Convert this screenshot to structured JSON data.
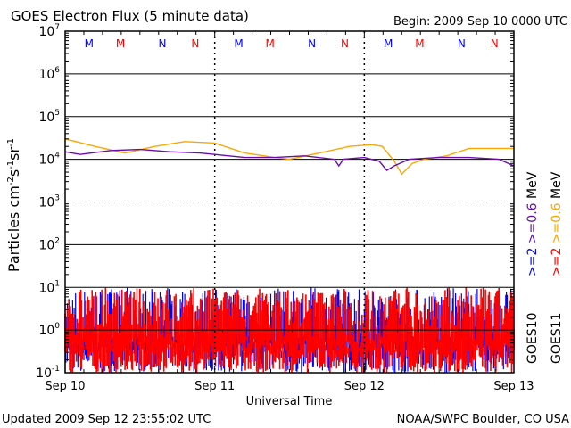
{
  "chart_data": {
    "type": "line",
    "title": "GOES Electron Flux (5 minute data)",
    "begin_label": "Begin: 2009 Sep 10 0000 UTC",
    "xlabel": "Universal Time",
    "ylabel": "Particles cm-2s-1sr-1",
    "ylabel_parts": {
      "base": "Particles cm",
      "e1": "-2",
      "s": "s",
      "e2": "-1",
      "sr": "sr",
      "e3": "-1"
    },
    "yscale": "log",
    "ylim": [
      0.1,
      10000000
    ],
    "y_ticks": [
      {
        "base": "10",
        "exp": "7"
      },
      {
        "base": "10",
        "exp": "6"
      },
      {
        "base": "10",
        "exp": "5"
      },
      {
        "base": "10",
        "exp": "4"
      },
      {
        "base": "10",
        "exp": "3"
      },
      {
        "base": "10",
        "exp": "2"
      },
      {
        "base": "10",
        "exp": "1"
      },
      {
        "base": "10",
        "exp": "0"
      },
      {
        "base": "10",
        "exp": "-1"
      }
    ],
    "xlim_days": [
      0,
      3
    ],
    "x_ticks": [
      "Sep 10",
      "Sep 11",
      "Sep 12",
      "Sep 13"
    ],
    "threshold_lines": [
      1000000,
      100000,
      10000,
      100,
      10,
      1
    ],
    "dashed_lines": [
      1000
    ],
    "markers": [
      {
        "label": "M",
        "day": 0.16,
        "color": "#0000ff"
      },
      {
        "label": "M",
        "day": 0.37,
        "color": "#ff0000"
      },
      {
        "label": "N",
        "day": 0.65,
        "color": "#0000ff"
      },
      {
        "label": "N",
        "day": 0.87,
        "color": "#ff0000"
      },
      {
        "label": "M",
        "day": 1.16,
        "color": "#0000ff"
      },
      {
        "label": "M",
        "day": 1.37,
        "color": "#ff0000"
      },
      {
        "label": "N",
        "day": 1.65,
        "color": "#0000ff"
      },
      {
        "label": "N",
        "day": 1.87,
        "color": "#ff0000"
      },
      {
        "label": "M",
        "day": 2.16,
        "color": "#0000ff"
      },
      {
        "label": "M",
        "day": 2.37,
        "color": "#ff0000"
      },
      {
        "label": "N",
        "day": 2.65,
        "color": "#0000ff"
      },
      {
        "label": "N",
        "day": 2.87,
        "color": "#ff0000"
      }
    ],
    "series": [
      {
        "name": ">=0.6 MeV GOES11",
        "color": "#ffa500",
        "x": [
          0,
          0.2,
          0.4,
          0.6,
          0.8,
          1.0,
          1.2,
          1.4,
          1.5,
          1.7,
          1.9,
          2.05,
          2.12,
          2.2,
          2.25,
          2.32,
          2.4,
          2.55,
          2.7,
          2.85,
          3.0
        ],
        "values": [
          30000,
          20000,
          14000,
          20000,
          26000,
          24000,
          14000,
          11000,
          10000,
          14000,
          20000,
          22000,
          20000,
          9000,
          4500,
          8000,
          10000,
          12000,
          18000,
          18000,
          18000
        ]
      },
      {
        "name": ">=0.6 MeV GOES10",
        "color": "#6a0dad",
        "x": [
          0,
          0.1,
          0.3,
          0.5,
          0.7,
          0.9,
          1.0,
          1.2,
          1.4,
          1.6,
          1.8,
          1.83,
          1.86,
          2.0,
          2.1,
          2.15,
          2.2,
          2.3,
          2.5,
          2.7,
          2.9,
          3.0
        ],
        "values": [
          15000,
          13000,
          16000,
          17000,
          15000,
          14000,
          13000,
          11000,
          11000,
          12000,
          10000,
          7000,
          10000,
          11000,
          9000,
          5500,
          7000,
          10000,
          11000,
          11000,
          10000,
          7000
        ]
      },
      {
        "name": ">=2 MeV GOES10",
        "color": "#0000ff",
        "noise": true,
        "min": 0.1,
        "max": 10,
        "typical": [
          0.3,
          6
        ]
      },
      {
        "name": ">=2 MeV GOES11",
        "color": "#ff0000",
        "noise": true,
        "min": 0.1,
        "max": 10,
        "typical": [
          0.3,
          8
        ]
      }
    ],
    "legend": [
      {
        "text": ">=2 >=0.6 MeV",
        "color_a": "#0000ff",
        "color_b": "#6a0dad",
        "a": ">=2",
        "b": ">=0.6",
        "unit": "MeV",
        "sat": "GOES10"
      },
      {
        "text": ">=2 >=0.6 MeV",
        "color_a": "#ff0000",
        "color_b": "#ffa500",
        "a": ">=2",
        "b": ">=0.6",
        "unit": "MeV",
        "sat": "GOES11"
      }
    ],
    "legend_placement": "right"
  },
  "footer": {
    "updated": "Updated 2009 Sep 12 23:55:02 UTC",
    "source": "NOAA/SWPC Boulder, CO USA"
  }
}
